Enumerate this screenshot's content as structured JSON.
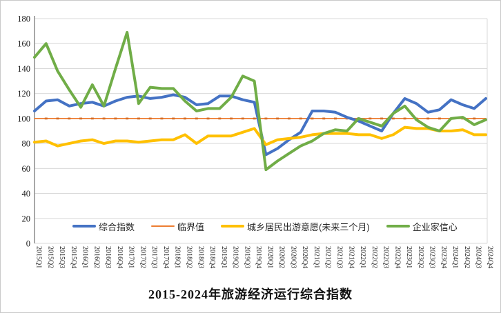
{
  "title": "2015-2024年旅游经济运行综合指数",
  "chart_data": {
    "type": "line",
    "title": "2015-2024年旅游经济运行综合指数",
    "x_labels": [
      "2015Q1",
      "2015Q2",
      "2015Q3",
      "2015Q4",
      "2016Q1",
      "2016Q2",
      "2016Q3",
      "2016Q4",
      "2017Q1",
      "2017Q2",
      "2017Q3",
      "2017Q4",
      "2018Q1",
      "2018Q2",
      "2018Q3",
      "2018Q4",
      "2019Q1",
      "2019Q2",
      "2019Q3",
      "2019Q4",
      "2020Q1",
      "2020Q2",
      "2020Q3",
      "2020Q4",
      "2021Q1",
      "2021Q2",
      "2021Q3",
      "2021Q4",
      "2022Q1",
      "2022Q2",
      "2022Q3",
      "2022Q4",
      "2023Q1",
      "2023Q2",
      "2023Q3",
      "2023Q4",
      "2024Q1",
      "2024Q2",
      "2024Q3",
      "2024Q4"
    ],
    "ylim": [
      0,
      180
    ],
    "ytick_step": 20,
    "grid": true,
    "legend_position": "bottom-inside",
    "gridline_color": "#d9d9d9",
    "axis_color": "#8c8c8c",
    "label_color": "#1a1a1a",
    "series": [
      {
        "name": "综合指数",
        "color": "#4472C4",
        "stroke_width": 4,
        "values": [
          106,
          114,
          115,
          110,
          112,
          113,
          110,
          114,
          117,
          118,
          116,
          117,
          119,
          117,
          111,
          112,
          118,
          118,
          115,
          113,
          71,
          76,
          83,
          89,
          106,
          106,
          105,
          101,
          98,
          94,
          90,
          104,
          116,
          112,
          105,
          107,
          115,
          111,
          108,
          116
        ]
      },
      {
        "name": "临界值",
        "color": "#ED7D31",
        "stroke_width": 1.8,
        "values": [
          100,
          100,
          100,
          100,
          100,
          100,
          100,
          100,
          100,
          100,
          100,
          100,
          100,
          100,
          100,
          100,
          100,
          100,
          100,
          100,
          100,
          100,
          100,
          100,
          100,
          100,
          100,
          100,
          100,
          100,
          100,
          100,
          100,
          100,
          100,
          100,
          100,
          100,
          100,
          100
        ]
      },
      {
        "name": "城乡居民出游意愿(未来三个月)",
        "color": "#FFC000",
        "stroke_width": 4,
        "values": [
          81,
          82,
          78,
          80,
          82,
          83,
          80,
          82,
          82,
          81,
          82,
          83,
          83,
          87,
          80,
          86,
          86,
          86,
          89,
          92,
          79,
          83,
          84,
          85,
          87,
          88,
          88,
          88,
          87,
          87,
          84,
          87,
          93,
          92,
          92,
          90,
          90,
          91,
          87,
          87
        ]
      },
      {
        "name": "企业家信心",
        "color": "#70AD47",
        "stroke_width": 4,
        "values": [
          149,
          160,
          138,
          123,
          109,
          127,
          110,
          140,
          169,
          112,
          125,
          124,
          124,
          114,
          106,
          108,
          108,
          117,
          134,
          130,
          59,
          66,
          72,
          78,
          82,
          88,
          91,
          90,
          100,
          97,
          94,
          104,
          110,
          99,
          93,
          90,
          100,
          101,
          95,
          99
        ]
      }
    ]
  }
}
